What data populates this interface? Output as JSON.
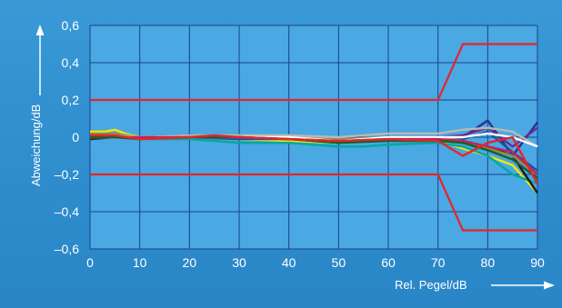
{
  "chart_data": {
    "type": "line",
    "xlabel": "Rel. Pegel/dB",
    "ylabel": "Abweichung/dB",
    "xlim": [
      0,
      90
    ],
    "ylim": [
      -0.6,
      0.6
    ],
    "x_ticks": [
      "0",
      "10",
      "20",
      "30",
      "40",
      "50",
      "60",
      "70",
      "80",
      "90"
    ],
    "y_ticks": [
      "0,6",
      "0,4",
      "0,2",
      "0",
      "–0,2",
      "–0,4",
      "–0,6"
    ],
    "grid": true,
    "tolerance_limits": {
      "color": "#e3262b",
      "upper": [
        [
          0,
          0.2
        ],
        [
          70,
          0.2
        ],
        [
          75,
          0.5
        ],
        [
          90,
          0.5
        ]
      ],
      "lower": [
        [
          0,
          -0.2
        ],
        [
          70,
          -0.2
        ],
        [
          75,
          -0.5
        ],
        [
          90,
          -0.5
        ]
      ]
    },
    "series": [
      {
        "color": "#f5e600",
        "points": [
          [
            0,
            0.03
          ],
          [
            3,
            0.03
          ],
          [
            5,
            0.04
          ],
          [
            7,
            0.02
          ],
          [
            10,
            0.0
          ],
          [
            15,
            0.0
          ],
          [
            20,
            0.0
          ],
          [
            25,
            0.0
          ],
          [
            30,
            -0.01
          ],
          [
            40,
            -0.02
          ],
          [
            50,
            -0.03
          ],
          [
            60,
            -0.01
          ],
          [
            70,
            -0.02
          ],
          [
            75,
            -0.06
          ],
          [
            80,
            -0.1
          ],
          [
            85,
            -0.15
          ],
          [
            90,
            -0.3
          ]
        ]
      },
      {
        "color": "#00a99d",
        "points": [
          [
            0,
            0.0
          ],
          [
            5,
            0.0
          ],
          [
            10,
            -0.01
          ],
          [
            20,
            -0.01
          ],
          [
            30,
            -0.03
          ],
          [
            40,
            -0.03
          ],
          [
            50,
            -0.05
          ],
          [
            55,
            -0.05
          ],
          [
            60,
            -0.04
          ],
          [
            70,
            -0.03
          ],
          [
            75,
            -0.05
          ],
          [
            80,
            -0.1
          ],
          [
            85,
            -0.2
          ],
          [
            90,
            -0.25
          ]
        ]
      },
      {
        "color": "#1a1a1a",
        "points": [
          [
            0,
            -0.01
          ],
          [
            5,
            0.0
          ],
          [
            10,
            0.0
          ],
          [
            20,
            0.01
          ],
          [
            30,
            0.0
          ],
          [
            40,
            -0.01
          ],
          [
            50,
            -0.03
          ],
          [
            60,
            -0.01
          ],
          [
            70,
            -0.01
          ],
          [
            75,
            -0.03
          ],
          [
            80,
            -0.05
          ],
          [
            85,
            -0.1
          ],
          [
            90,
            -0.3
          ]
        ]
      },
      {
        "color": "#2b2f8f",
        "points": [
          [
            0,
            0.0
          ],
          [
            5,
            0.01
          ],
          [
            10,
            0.0
          ],
          [
            20,
            0.0
          ],
          [
            30,
            0.0
          ],
          [
            40,
            0.0
          ],
          [
            50,
            -0.02
          ],
          [
            60,
            -0.01
          ],
          [
            70,
            -0.01
          ],
          [
            75,
            0.0
          ],
          [
            80,
            0.09
          ],
          [
            85,
            -0.1
          ],
          [
            90,
            0.08
          ]
        ]
      },
      {
        "color": "#6b2c8f",
        "points": [
          [
            0,
            0.01
          ],
          [
            5,
            0.0
          ],
          [
            10,
            0.0
          ],
          [
            20,
            0.01
          ],
          [
            30,
            0.0
          ],
          [
            40,
            -0.01
          ],
          [
            50,
            -0.02
          ],
          [
            60,
            0.0
          ],
          [
            70,
            0.0
          ],
          [
            75,
            0.01
          ],
          [
            80,
            0.05
          ],
          [
            85,
            -0.05
          ],
          [
            90,
            0.05
          ]
        ]
      },
      {
        "color": "#1e4fa0",
        "points": [
          [
            0,
            0.0
          ],
          [
            5,
            0.0
          ],
          [
            10,
            0.0
          ],
          [
            20,
            0.0
          ],
          [
            30,
            -0.01
          ],
          [
            40,
            -0.01
          ],
          [
            50,
            -0.02
          ],
          [
            60,
            -0.01
          ],
          [
            70,
            -0.02
          ],
          [
            75,
            -0.01
          ],
          [
            80,
            0.03
          ],
          [
            85,
            -0.08
          ],
          [
            90,
            -0.18
          ]
        ]
      },
      {
        "color": "#8a8f4a",
        "points": [
          [
            0,
            0.02
          ],
          [
            5,
            0.02
          ],
          [
            10,
            0.0
          ],
          [
            20,
            0.0
          ],
          [
            30,
            0.01
          ],
          [
            40,
            0.0
          ],
          [
            50,
            -0.01
          ],
          [
            60,
            0.0
          ],
          [
            70,
            0.0
          ],
          [
            75,
            -0.02
          ],
          [
            80,
            -0.06
          ],
          [
            85,
            -0.1
          ],
          [
            90,
            -0.2
          ]
        ]
      },
      {
        "color": "#b9b9b9",
        "points": [
          [
            0,
            0.0
          ],
          [
            5,
            0.01
          ],
          [
            10,
            0.0
          ],
          [
            20,
            0.01
          ],
          [
            30,
            0.01
          ],
          [
            40,
            0.01
          ],
          [
            50,
            0.0
          ],
          [
            60,
            0.02
          ],
          [
            70,
            0.02
          ],
          [
            75,
            0.04
          ],
          [
            80,
            0.05
          ],
          [
            85,
            0.03
          ],
          [
            90,
            -0.05
          ]
        ]
      },
      {
        "color": "#ffffff",
        "points": [
          [
            0,
            0.0
          ],
          [
            5,
            0.0
          ],
          [
            10,
            0.0
          ],
          [
            20,
            0.0
          ],
          [
            30,
            0.0
          ],
          [
            40,
            0.0
          ],
          [
            50,
            -0.02
          ],
          [
            60,
            0.0
          ],
          [
            70,
            0.0
          ],
          [
            75,
            0.0
          ],
          [
            80,
            0.02
          ],
          [
            85,
            0.0
          ],
          [
            90,
            -0.05
          ]
        ]
      },
      {
        "color": "#c71f5e",
        "points": [
          [
            0,
            0.01
          ],
          [
            5,
            0.0
          ],
          [
            10,
            0.0
          ],
          [
            20,
            0.0
          ],
          [
            30,
            0.0
          ],
          [
            40,
            -0.01
          ],
          [
            50,
            -0.02
          ],
          [
            60,
            -0.01
          ],
          [
            70,
            -0.01
          ],
          [
            75,
            -0.02
          ],
          [
            80,
            -0.05
          ],
          [
            85,
            -0.08
          ],
          [
            90,
            -0.2
          ]
        ]
      },
      {
        "color": "#1f5d2a",
        "points": [
          [
            0,
            0.0
          ],
          [
            5,
            0.0
          ],
          [
            10,
            -0.01
          ],
          [
            20,
            0.0
          ],
          [
            30,
            0.0
          ],
          [
            40,
            -0.01
          ],
          [
            50,
            -0.03
          ],
          [
            60,
            -0.02
          ],
          [
            70,
            -0.02
          ],
          [
            75,
            -0.03
          ],
          [
            80,
            -0.07
          ],
          [
            85,
            -0.12
          ],
          [
            90,
            -0.22
          ]
        ]
      },
      {
        "color": "#e3262b",
        "points": [
          [
            0,
            0.01
          ],
          [
            5,
            0.01
          ],
          [
            10,
            -0.01
          ],
          [
            20,
            0.0
          ],
          [
            25,
            0.01
          ],
          [
            30,
            0.0
          ],
          [
            40,
            -0.01
          ],
          [
            50,
            -0.02
          ],
          [
            60,
            -0.01
          ],
          [
            70,
            -0.02
          ],
          [
            75,
            -0.1
          ],
          [
            80,
            -0.03
          ],
          [
            85,
            0.0
          ],
          [
            90,
            -0.25
          ]
        ]
      }
    ]
  }
}
